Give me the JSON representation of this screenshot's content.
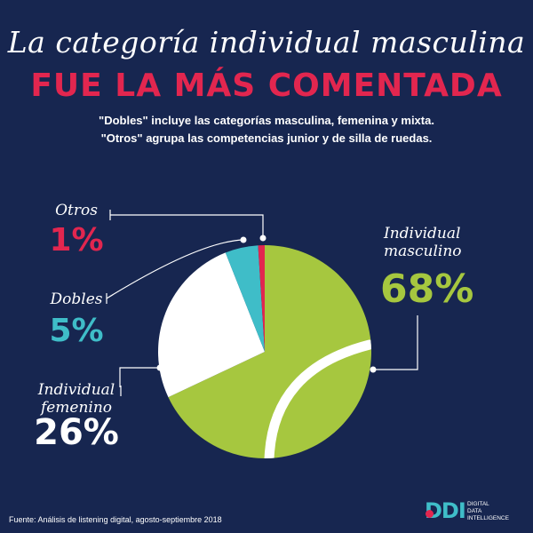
{
  "header": {
    "title_script": "La categoría individual masculina",
    "title_bold": "FUE LA MÁS COMENTADA",
    "subtitle_line1": "\"Dobles\" incluye las categorías masculina, femenina y mixta.",
    "subtitle_line2": "\"Otros\" agrupa las competencias junior y de silla de ruedas."
  },
  "chart_data": {
    "type": "pie",
    "title": "FUE LA MÁS COMENTADA",
    "slices": [
      {
        "label": "Individual masculino",
        "label_lines": [
          "Individual",
          "masculino"
        ],
        "value": 68,
        "value_label": "68%",
        "color": "#a6c73f",
        "label_color": "#a6c73f"
      },
      {
        "label": "Individual femenino",
        "label_lines": [
          "Individual",
          "femenino"
        ],
        "value": 26,
        "value_label": "26%",
        "color": "#ffffff",
        "label_color": "#ffffff"
      },
      {
        "label": "Dobles",
        "label_lines": [
          "Dobles"
        ],
        "value": 5,
        "value_label": "5%",
        "color": "#3fbdc8",
        "label_color": "#3fbdc8"
      },
      {
        "label": "Otros",
        "label_lines": [
          "Otros"
        ],
        "value": 1,
        "value_label": "1%",
        "color": "#e2264f",
        "label_color": "#e2264f"
      }
    ],
    "colors": {
      "background": "#172650",
      "name_text": "#ffffff"
    }
  },
  "footer": {
    "source": "Fuente: Análisis de listening digital, agosto-septiembre 2018"
  },
  "logo": {
    "mark": "DDI",
    "line1": "DIGITAL",
    "line2": "DATA",
    "line3": "INTELLIGENCE"
  }
}
